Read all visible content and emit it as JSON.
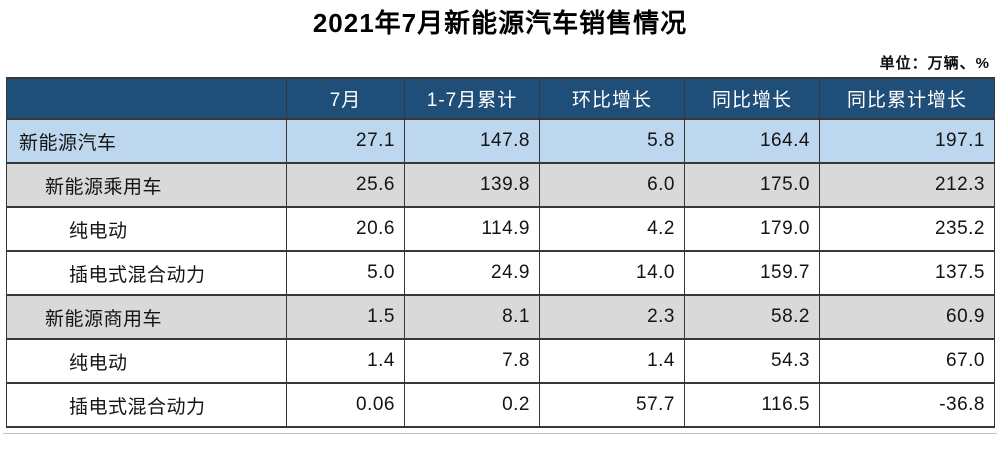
{
  "title": "2021年7月新能源汽车销售情况",
  "unit_note": "单位：万辆、%",
  "colors": {
    "header_bg": "#1F4E79",
    "header_text": "#FFFFFF",
    "highlight_row_bg": "#BDD7EE",
    "subtotal_row_bg": "#D9D9D9",
    "plain_row_bg": "#FFFFFF",
    "border": "#373737",
    "body_text": "#141414"
  },
  "chart_data": {
    "type": "table",
    "title": "2021年7月新能源汽车销售情况",
    "unit": "万辆、%",
    "columns": [
      "",
      "7月",
      "1-7月累计",
      "环比增长",
      "同比增长",
      "同比累计增长"
    ],
    "rows": [
      {
        "label": "新能源汽车",
        "indent": 0,
        "style": "highlight",
        "values": [
          "27.1",
          "147.8",
          "5.8",
          "164.4",
          "197.1"
        ]
      },
      {
        "label": "新能源乘用车",
        "indent": 1,
        "style": "subtotal",
        "values": [
          "25.6",
          "139.8",
          "6.0",
          "175.0",
          "212.3"
        ]
      },
      {
        "label": "纯电动",
        "indent": 2,
        "style": "plain",
        "values": [
          "20.6",
          "114.9",
          "4.2",
          "179.0",
          "235.2"
        ]
      },
      {
        "label": "插电式混合动力",
        "indent": 2,
        "style": "plain",
        "values": [
          "5.0",
          "24.9",
          "14.0",
          "159.7",
          "137.5"
        ]
      },
      {
        "label": "新能源商用车",
        "indent": 1,
        "style": "subtotal",
        "values": [
          "1.5",
          "8.1",
          "2.3",
          "58.2",
          "60.9"
        ]
      },
      {
        "label": "纯电动",
        "indent": 2,
        "style": "plain",
        "values": [
          "1.4",
          "7.8",
          "1.4",
          "54.3",
          "67.0"
        ]
      },
      {
        "label": "插电式混合动力",
        "indent": 2,
        "style": "plain",
        "values": [
          "0.06",
          "0.2",
          "57.7",
          "116.5",
          "-36.8"
        ]
      }
    ]
  }
}
